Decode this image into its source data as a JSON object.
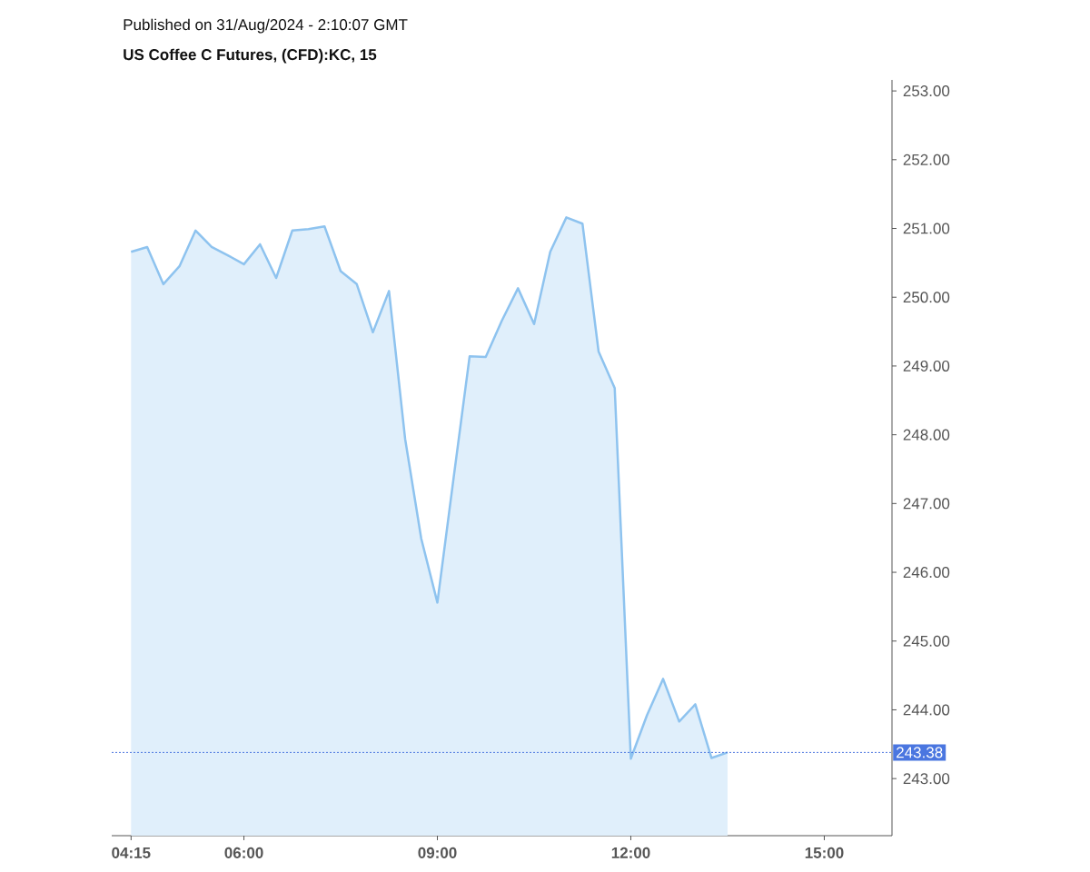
{
  "chart_data": {
    "type": "area",
    "title": "US Coffee C Futures, (CFD):KC, 15",
    "annotations": [
      "Published on 31/Aug/2024 - 2:10:07 GMT"
    ],
    "x": [
      4.25,
      4.5,
      4.75,
      5,
      5.25,
      5.5,
      5.75,
      6,
      6.25,
      6.5,
      6.75,
      7,
      7.25,
      7.5,
      7.75,
      8,
      8.25,
      8.5,
      8.75,
      9,
      9.25,
      9.5,
      9.75,
      10,
      10.25,
      10.5,
      10.75,
      11,
      11.25,
      11.5,
      11.75,
      12,
      12.25,
      12.5,
      12.75,
      13,
      13.25,
      13.5
    ],
    "values": [
      250.66,
      250.73,
      250.19,
      250.45,
      250.97,
      250.73,
      250.61,
      250.48,
      250.77,
      250.28,
      250.97,
      250.99,
      251.03,
      250.38,
      250.19,
      249.49,
      250.09,
      247.94,
      246.49,
      245.56,
      247.36,
      249.14,
      249.13,
      249.66,
      250.13,
      249.61,
      250.66,
      251.16,
      251.07,
      249.21,
      248.68,
      243.29,
      243.92,
      244.45,
      243.83,
      244.08,
      243.3,
      243.38
    ],
    "color": "#8ec3ef",
    "line_style": "solid",
    "xlim": [
      3.95,
      16.05
    ],
    "ylim": [
      242.17,
      253.16
    ],
    "xticks": [
      {
        "value": 4.25,
        "label": "04:15"
      },
      {
        "value": 6,
        "label": "06:00"
      },
      {
        "value": 9,
        "label": "09:00"
      },
      {
        "value": 12,
        "label": "12:00"
      },
      {
        "value": 15,
        "label": "15:00"
      }
    ],
    "yticks": [
      {
        "value": 243,
        "label": "243.00"
      },
      {
        "value": 244,
        "label": "244.00"
      },
      {
        "value": 245,
        "label": "245.00"
      },
      {
        "value": 246,
        "label": "246.00"
      },
      {
        "value": 247,
        "label": "247.00"
      },
      {
        "value": 248,
        "label": "248.00"
      },
      {
        "value": 249,
        "label": "249.00"
      },
      {
        "value": 250,
        "label": "250.00"
      },
      {
        "value": 251,
        "label": "251.00"
      },
      {
        "value": 252,
        "label": "252.00"
      },
      {
        "value": 253,
        "label": "253.00"
      }
    ],
    "ref_lines": [
      {
        "axis": "y",
        "value": 243.38,
        "label": "243.38",
        "color": "#4a76e0",
        "line_style": "dotted"
      }
    ]
  }
}
